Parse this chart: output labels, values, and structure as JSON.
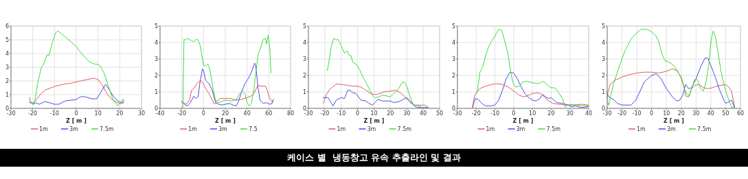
{
  "chart_data": [
    {
      "type": "line",
      "xlabel": "Z [ m ]",
      "xlim": [
        -30,
        30
      ],
      "xticks": [
        -30,
        -20,
        -10,
        0,
        10,
        20,
        30
      ],
      "ylim": [
        0,
        6
      ],
      "yticks": [
        0,
        1,
        2,
        3,
        4,
        5,
        6
      ],
      "grid": true,
      "legend": "bottom",
      "series": [
        {
          "name": "1m",
          "color": "#e05c5c",
          "x": [
            -21.5,
            -21,
            -19.5,
            -18,
            -16,
            -14,
            -10,
            -6,
            -2,
            2,
            5,
            8,
            10,
            12,
            14,
            16,
            19,
            21,
            22
          ],
          "values": [
            0.8,
            0.4,
            0.4,
            0.7,
            1.1,
            1.35,
            1.6,
            1.75,
            1.85,
            2.0,
            2.1,
            2.2,
            2.1,
            1.7,
            1.1,
            0.7,
            0.4,
            0.35,
            0.45
          ]
        },
        {
          "name": "3m",
          "color": "#4a4ae6",
          "x": [
            -21.5,
            -20,
            -18.5,
            -17,
            -14.5,
            -12,
            -10,
            -8,
            -5,
            -2,
            0,
            2,
            4,
            7,
            9.5,
            11,
            13.5,
            15,
            17,
            19,
            21,
            22
          ],
          "values": [
            0.45,
            0.35,
            0.4,
            0.3,
            0.5,
            0.4,
            0.3,
            0.3,
            0.55,
            0.6,
            0.65,
            0.85,
            0.85,
            0.7,
            0.7,
            1.1,
            1.75,
            1.4,
            0.9,
            0.55,
            0.4,
            0.6
          ]
        },
        {
          "name": "7.5m",
          "color": "#3ddc3d",
          "x": [
            -21.5,
            -20.5,
            -19.7,
            -19,
            -17.5,
            -16,
            -15,
            -13.5,
            -12.5,
            -11,
            -9.5,
            -8.5,
            -5,
            -2,
            0,
            3,
            6,
            8,
            10,
            11,
            13,
            15,
            17,
            19,
            20.5,
            21.5
          ],
          "values": [
            0.45,
            0.45,
            0.25,
            0.6,
            2,
            3,
            3.2,
            3.9,
            3.85,
            4.8,
            5.5,
            5.65,
            5.2,
            4.8,
            4.5,
            3.9,
            3.4,
            3.25,
            3.2,
            3.1,
            2.5,
            1.5,
            0.6,
            0.2,
            0.4,
            0.7
          ]
        }
      ]
    },
    {
      "type": "line",
      "xlabel": "Z [ m ]",
      "xlim": [
        -40,
        80
      ],
      "xticks": [
        -40,
        -20,
        0,
        20,
        40,
        60,
        80
      ],
      "ylim": [
        0,
        5
      ],
      "yticks": [
        0,
        1,
        2,
        3,
        4,
        5
      ],
      "grid": true,
      "legend": "bottom",
      "series": [
        {
          "name": "1m",
          "color": "#e05c5c",
          "x": [
            -20,
            -18,
            -16,
            -13,
            -11,
            -9,
            -6,
            -3,
            -1,
            2,
            5,
            8,
            10,
            12,
            15,
            20,
            25,
            30,
            35,
            40,
            44,
            47,
            50,
            53,
            57,
            59,
            61,
            63,
            64.5
          ],
          "values": [
            0.35,
            0.3,
            0.25,
            0.5,
            1.1,
            1.2,
            1.5,
            1.7,
            1.6,
            1.2,
            0.9,
            0.5,
            0.25,
            0.4,
            0.6,
            0.6,
            0.6,
            0.5,
            0.55,
            0.65,
            0.75,
            1.0,
            1.4,
            1.35,
            1.35,
            1.0,
            0.6,
            0.4,
            0.55
          ]
        },
        {
          "name": "3m",
          "color": "#4a4ae6",
          "x": [
            -20,
            -18,
            -16,
            -14,
            -12,
            -9,
            -7,
            -5,
            -3,
            -1,
            0,
            2,
            5,
            8,
            11,
            14,
            17,
            20,
            24,
            27,
            30,
            32,
            35,
            38,
            41,
            44,
            47,
            48,
            50,
            52,
            55,
            58,
            61,
            63,
            64
          ],
          "values": [
            0.45,
            0.3,
            0.15,
            0.2,
            0.35,
            0.75,
            0.6,
            0.7,
            1.7,
            2.4,
            2.3,
            1.7,
            1.5,
            1.1,
            0.35,
            0.25,
            0.2,
            0.25,
            0.3,
            0.2,
            0.15,
            0.4,
            1.0,
            1.5,
            1.8,
            2.2,
            2.75,
            2.6,
            1.3,
            0.5,
            0.3,
            0.35,
            0.25,
            0.3,
            0.5
          ]
        },
        {
          "name": "7.5",
          "color": "#3ddc3d",
          "x": [
            -20,
            -19,
            -18,
            -17,
            -15,
            -12,
            -9,
            -7,
            -5,
            -3,
            -1,
            0,
            2,
            4,
            6,
            9,
            11,
            13,
            16,
            20,
            25,
            30,
            33,
            36,
            38,
            40,
            42,
            44,
            46,
            48,
            50,
            52,
            55,
            57,
            58,
            59.5,
            61,
            62
          ],
          "values": [
            0.1,
            0.05,
            4.2,
            4.15,
            4.25,
            4.15,
            4.05,
            4.2,
            4.15,
            3.8,
            3.0,
            2.6,
            2.6,
            2.7,
            2.3,
            1.1,
            0.5,
            0.35,
            0.4,
            0.5,
            0.45,
            0.5,
            0.9,
            1.05,
            0.9,
            0.35,
            0.15,
            0.3,
            1.0,
            2.1,
            3.2,
            3.6,
            4.2,
            4.25,
            3.9,
            4.45,
            3.6,
            2.15
          ]
        }
      ]
    },
    {
      "type": "line",
      "xlabel": "Z [ m ]",
      "xlim": [
        -30,
        50
      ],
      "xticks": [
        -30,
        -20,
        -10,
        0,
        10,
        20,
        30,
        40,
        50
      ],
      "ylim": [
        0,
        5
      ],
      "yticks": [
        0,
        1,
        2,
        3,
        4,
        5
      ],
      "grid": true,
      "legend": "bottom",
      "series": [
        {
          "name": "1m",
          "color": "#e05c5c",
          "x": [
            -21,
            -19,
            -17,
            -14,
            -12.5,
            -10,
            -6,
            -3,
            -1,
            2,
            5,
            8,
            10,
            12,
            16,
            20,
            23,
            26,
            29,
            32,
            35,
            38,
            41,
            43
          ],
          "values": [
            0.3,
            0.85,
            1.15,
            1.4,
            1.5,
            1.45,
            1.4,
            1.35,
            1.35,
            1.3,
            1.1,
            0.9,
            0.85,
            0.85,
            1.0,
            1.05,
            1.1,
            0.95,
            0.7,
            0.35,
            0.2,
            0.2,
            0.2,
            0.05
          ]
        },
        {
          "name": "3m",
          "color": "#4a4ae6",
          "x": [
            -21,
            -18,
            -16.5,
            -15,
            -13,
            -10,
            -8,
            -6,
            -4.5,
            -3,
            -1,
            2,
            5,
            7,
            9,
            10.5,
            12.5,
            15,
            18,
            20,
            22,
            25,
            28,
            30,
            32,
            34,
            36,
            40,
            43
          ],
          "values": [
            0.65,
            0.65,
            0.4,
            0.15,
            0.5,
            0.65,
            0.6,
            1.1,
            1.1,
            0.95,
            0.9,
            0.5,
            0.45,
            0.3,
            0.2,
            0.35,
            0.55,
            0.45,
            0.45,
            0.45,
            0.35,
            0.4,
            0.55,
            0.65,
            0.45,
            0.2,
            0.05,
            0.05,
            0.05
          ]
        },
        {
          "name": "7.5m",
          "color": "#3ddc3d",
          "x": [
            -18.5,
            -17.5,
            -16,
            -14.5,
            -13,
            -12,
            -10,
            -8,
            -6.5,
            -5,
            -4,
            -3,
            -1,
            1,
            3,
            5,
            7,
            9,
            10.5,
            13,
            15,
            18,
            20,
            22,
            25,
            27,
            28.5,
            30,
            32,
            34,
            37,
            40
          ],
          "values": [
            2.3,
            2.8,
            3.8,
            4.25,
            4.15,
            4.2,
            3.8,
            3.35,
            3.5,
            3.2,
            3.2,
            2.8,
            2.7,
            2.4,
            1.95,
            1.6,
            1.2,
            0.8,
            0.65,
            0.7,
            0.8,
            0.75,
            0.7,
            0.9,
            1.2,
            1.55,
            1.6,
            1.35,
            0.7,
            0.2,
            0.15,
            0.05
          ]
        }
      ]
    },
    {
      "type": "line",
      "xlabel": "Z [ m ]",
      "xlim": [
        -30,
        40
      ],
      "xticks": [
        -30,
        -20,
        -10,
        0,
        10,
        20,
        30,
        40
      ],
      "ylim": [
        0,
        5
      ],
      "yticks": [
        0,
        1,
        2,
        3,
        4,
        5
      ],
      "grid": true,
      "legend": "bottom",
      "series": [
        {
          "name": "1m",
          "color": "#e05c5c",
          "x": [
            -22,
            -21,
            -20,
            -18,
            -15,
            -12,
            -9,
            -6,
            -3,
            0,
            3,
            5,
            7,
            10,
            13,
            15,
            18,
            21,
            24,
            28,
            32,
            36,
            40
          ],
          "values": [
            0.05,
            0.7,
            0.95,
            1.2,
            1.35,
            1.45,
            1.5,
            1.45,
            1.3,
            1.05,
            0.8,
            0.7,
            0.75,
            0.9,
            0.95,
            0.85,
            0.5,
            0.3,
            0.25,
            0.2,
            0.2,
            0.25,
            0.2
          ]
        },
        {
          "name": "3m",
          "color": "#4a4ae6",
          "x": [
            -22,
            -20.5,
            -19,
            -17,
            -15,
            -12,
            -10,
            -8,
            -6,
            -4,
            -2,
            0,
            2,
            4,
            6,
            8,
            10,
            12,
            14,
            15.5,
            17,
            18.5,
            20,
            21.5,
            23,
            26,
            29,
            31,
            33,
            36,
            40
          ],
          "values": [
            0.05,
            0.6,
            0.55,
            0.3,
            0.15,
            0.15,
            0.2,
            0.5,
            1.1,
            1.8,
            2.2,
            2.15,
            1.8,
            1.3,
            0.9,
            0.65,
            0.5,
            0.45,
            0.6,
            0.85,
            0.7,
            0.6,
            0.65,
            0.5,
            0.35,
            0.3,
            0.2,
            0.1,
            0.15,
            0.05,
            0.1
          ]
        },
        {
          "name": "7.5m",
          "color": "#3ddc3d",
          "x": [
            -19.5,
            -18,
            -16.5,
            -15,
            -13.5,
            -12,
            -10,
            -8,
            -6.5,
            -5,
            -3,
            -2,
            -0.5,
            1,
            3,
            5,
            7,
            10,
            13,
            16,
            18,
            20,
            22,
            24,
            26,
            27.5,
            29,
            31,
            34,
            37,
            40
          ],
          "values": [
            0.95,
            2.2,
            2.5,
            3.2,
            3.7,
            4.05,
            4.4,
            4.8,
            4.75,
            4.2,
            3.3,
            2.5,
            1.6,
            1.3,
            1.35,
            1.6,
            1.65,
            1.55,
            1.5,
            1.65,
            1.4,
            1.25,
            1.25,
            0.95,
            0.6,
            0.1,
            0.2,
            0.25,
            0.2,
            0.15,
            0.15
          ]
        }
      ]
    },
    {
      "type": "line",
      "xlabel": "Z [ m ]",
      "xlim": [
        -30,
        60
      ],
      "xticks": [
        -30,
        -20,
        -10,
        0,
        10,
        20,
        30,
        40,
        50,
        60
      ],
      "ylim": [
        0,
        5
      ],
      "yticks": [
        0,
        1,
        2,
        3,
        4,
        5
      ],
      "grid": true,
      "legend": "bottom",
      "series": [
        {
          "name": "1m",
          "color": "#e05c5c",
          "x": [
            -30,
            -29.5,
            -28,
            -25,
            -20,
            -15,
            -10,
            -5,
            0,
            5,
            10,
            14,
            17,
            20,
            22,
            23,
            25,
            27,
            29,
            32,
            35,
            38,
            41,
            44,
            47,
            50,
            52,
            54,
            56
          ],
          "values": [
            0.55,
            1.0,
            1.45,
            1.7,
            1.9,
            2.05,
            2.15,
            2.2,
            2.2,
            2.15,
            2.25,
            2.4,
            2.3,
            1.9,
            1.3,
            0.75,
            0.7,
            1.2,
            1.4,
            1.45,
            1.25,
            1.2,
            1.25,
            1.35,
            1.4,
            1.45,
            1.3,
            1.05,
            0.1
          ]
        },
        {
          "name": "3m",
          "color": "#4a4ae6",
          "x": [
            -30,
            -29,
            -26,
            -23,
            -20,
            -14,
            -11,
            -8,
            -5,
            0,
            3,
            6,
            10,
            14,
            17,
            19,
            21,
            23,
            25,
            27,
            30,
            33,
            36,
            38,
            40,
            43,
            46,
            49,
            50,
            53,
            54,
            56
          ],
          "values": [
            0.9,
            0.7,
            0.55,
            0.3,
            0.2,
            0.2,
            0.45,
            1.0,
            1.6,
            2.0,
            2.1,
            1.85,
            1.2,
            0.7,
            0.45,
            0.5,
            0.8,
            1.45,
            1.2,
            1.25,
            1.8,
            2.5,
            3.05,
            3.05,
            2.6,
            1.9,
            1.1,
            0.45,
            0.3,
            0.45,
            0.5,
            0.05
          ]
        },
        {
          "name": "7.5m",
          "color": "#3ddc3d",
          "x": [
            -30,
            -29,
            -26,
            -22,
            -18,
            -14,
            -10,
            -7,
            -3,
            0,
            3,
            5,
            7,
            9,
            12,
            15,
            18,
            20,
            22,
            24,
            25.5,
            27,
            29,
            31,
            33,
            35,
            37,
            39,
            40,
            41.5,
            43,
            45,
            47,
            49,
            51,
            53,
            54,
            56
          ],
          "values": [
            0.45,
            0.2,
            1.4,
            2.5,
            3.5,
            4.2,
            4.6,
            4.8,
            4.8,
            4.65,
            4.4,
            4.0,
            3.3,
            2.9,
            2.8,
            2.6,
            2.2,
            1.8,
            1.2,
            0.85,
            0.75,
            1.2,
            1.75,
            1.75,
            1.2,
            1.05,
            1.7,
            3.0,
            4.0,
            4.7,
            4.4,
            3.3,
            2.2,
            1.4,
            0.8,
            0.3,
            0.05,
            0.05
          ]
        }
      ]
    },
    {
      "type": "other",
      "title": "케이스 별  냉동창고 유속 추출라인 및 결과"
    }
  ]
}
